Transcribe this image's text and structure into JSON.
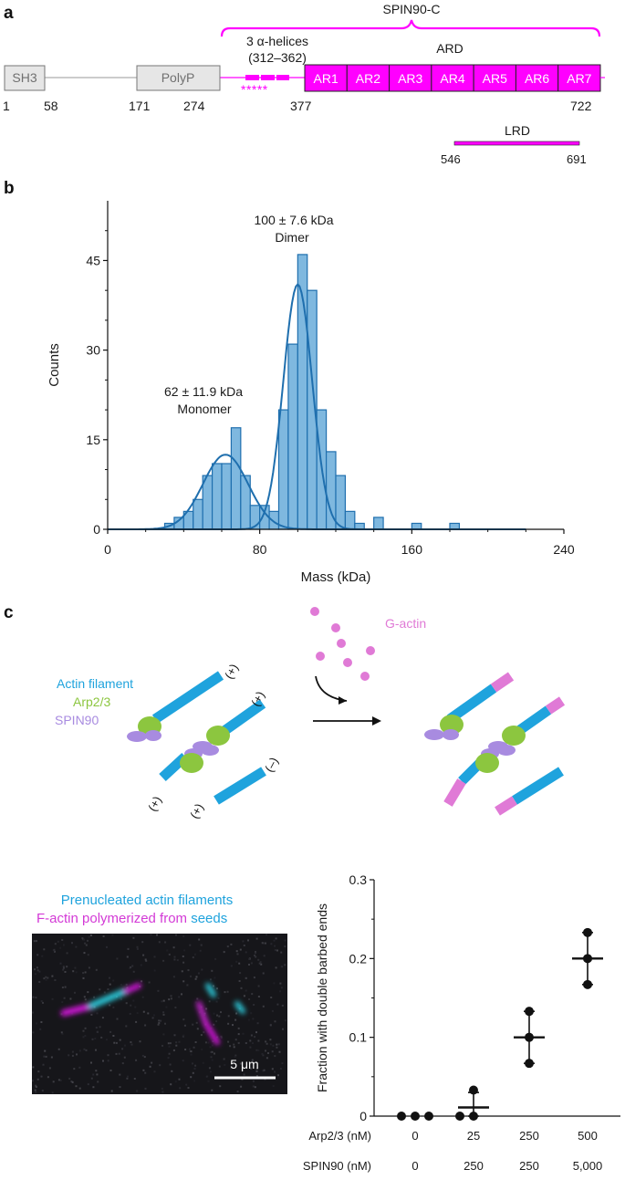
{
  "panel_a": {
    "letter": "a",
    "domains": [
      {
        "label": "SH3",
        "color": "#e6e6e6"
      },
      {
        "label": "PolyP",
        "color": "#e6e6e6"
      }
    ],
    "helices_label_line1": "3 α-helices",
    "helices_label_line2": "(312–362)",
    "helix_stars": "*****",
    "spin90c_label": "SPIN90-C",
    "ard_label": "ARD",
    "repeats": [
      "AR1",
      "AR2",
      "AR3",
      "AR4",
      "AR5",
      "AR6",
      "AR7"
    ],
    "residue_ticks": [
      "1",
      "58",
      "171",
      "274",
      "377",
      "722"
    ],
    "lrd": {
      "label": "LRD",
      "start": "546",
      "end": "691"
    },
    "magenta": "#ff00ff"
  },
  "panel_b": {
    "letter": "b",
    "annotations": {
      "dimer_mass": "100 ± 7.6 kDa",
      "dimer_label": "Dimer",
      "monomer_mass": "62 ± 11.9 kDa",
      "monomer_label": "Monomer"
    }
  },
  "panel_c": {
    "letter": "c",
    "gactin_label": "G-actin",
    "legend": {
      "actin_filament": "Actin filament",
      "arp23": "Arp2/3",
      "spin90": "SPIN90"
    },
    "end_labels": {
      "plus": "(+)",
      "minus": "(–)"
    },
    "micrograph": {
      "line1": "Prenucleated actin filaments",
      "line2_part1": "F-actin polymerized from ",
      "line2_part2": "seeds",
      "scale_bar": "5 μm"
    },
    "row_labels": {
      "arp": "Arp2/3 (nM)",
      "spin": "SPIN90 (nM)"
    },
    "conditions": [
      {
        "arp": "0",
        "spin": "0"
      },
      {
        "arp": "25",
        "spin": "250"
      },
      {
        "arp": "250",
        "spin": "250"
      },
      {
        "arp": "500",
        "spin": "5,000"
      }
    ],
    "colors": {
      "actin": "#1fa3dd",
      "arp": "#8cc63f",
      "spin": "#a88be0",
      "gactin": "#e07ad6"
    }
  },
  "chart_data": [
    {
      "type": "histogram",
      "title": "",
      "xlabel": "Mass (kDa)",
      "ylabel": "Counts",
      "xlim": [
        0,
        240
      ],
      "ylim": [
        0,
        55
      ],
      "xticks": [
        0,
        80,
        160,
        240
      ],
      "yticks": [
        0,
        15,
        30,
        45
      ],
      "bin_width": 5,
      "bins": [
        {
          "x": 25,
          "count": 0
        },
        {
          "x": 30,
          "count": 1
        },
        {
          "x": 35,
          "count": 2
        },
        {
          "x": 40,
          "count": 3
        },
        {
          "x": 45,
          "count": 5
        },
        {
          "x": 50,
          "count": 9
        },
        {
          "x": 55,
          "count": 11
        },
        {
          "x": 60,
          "count": 11
        },
        {
          "x": 65,
          "count": 17
        },
        {
          "x": 70,
          "count": 9
        },
        {
          "x": 75,
          "count": 4
        },
        {
          "x": 80,
          "count": 4
        },
        {
          "x": 85,
          "count": 3
        },
        {
          "x": 90,
          "count": 20
        },
        {
          "x": 95,
          "count": 31
        },
        {
          "x": 100,
          "count": 46
        },
        {
          "x": 105,
          "count": 40
        },
        {
          "x": 110,
          "count": 20
        },
        {
          "x": 115,
          "count": 13
        },
        {
          "x": 120,
          "count": 9
        },
        {
          "x": 125,
          "count": 3
        },
        {
          "x": 130,
          "count": 1
        },
        {
          "x": 135,
          "count": 0
        },
        {
          "x": 140,
          "count": 2
        },
        {
          "x": 160,
          "count": 1
        },
        {
          "x": 180,
          "count": 1
        }
      ],
      "fits": [
        {
          "name": "Monomer",
          "mean": 62,
          "sd": 11.9,
          "amplitude": 12.5
        },
        {
          "name": "Dimer",
          "mean": 100,
          "sd": 7.6,
          "amplitude": 41
        }
      ],
      "fit_range": [
        0,
        220
      ],
      "bar_color": "#7fb8df",
      "edge_color": "#1f6fae",
      "fit_color": "#1f6fae"
    },
    {
      "type": "scatter",
      "title": "",
      "xlabel": "",
      "ylabel": "Fraction with double barbed ends",
      "ylim": [
        0,
        0.3
      ],
      "yticks": [
        0,
        0.1,
        0.2,
        0.3
      ],
      "ytick_labels": [
        "0",
        "0.1",
        "0.2",
        "0.3"
      ],
      "categories": [
        "0 / 0",
        "25 / 250",
        "250 / 250",
        "500 / 5,000"
      ],
      "points": [
        [
          0,
          0,
          0
        ],
        [
          0,
          0,
          0.033
        ],
        [
          0.067,
          0.1,
          0.133
        ],
        [
          0.167,
          0.2,
          0.233
        ]
      ],
      "means": [
        0,
        0.011,
        0.1,
        0.2
      ],
      "sd_low": [
        0,
        0,
        0.067,
        0.167
      ],
      "sd_high": [
        0,
        0.03,
        0.133,
        0.233
      ]
    }
  ]
}
